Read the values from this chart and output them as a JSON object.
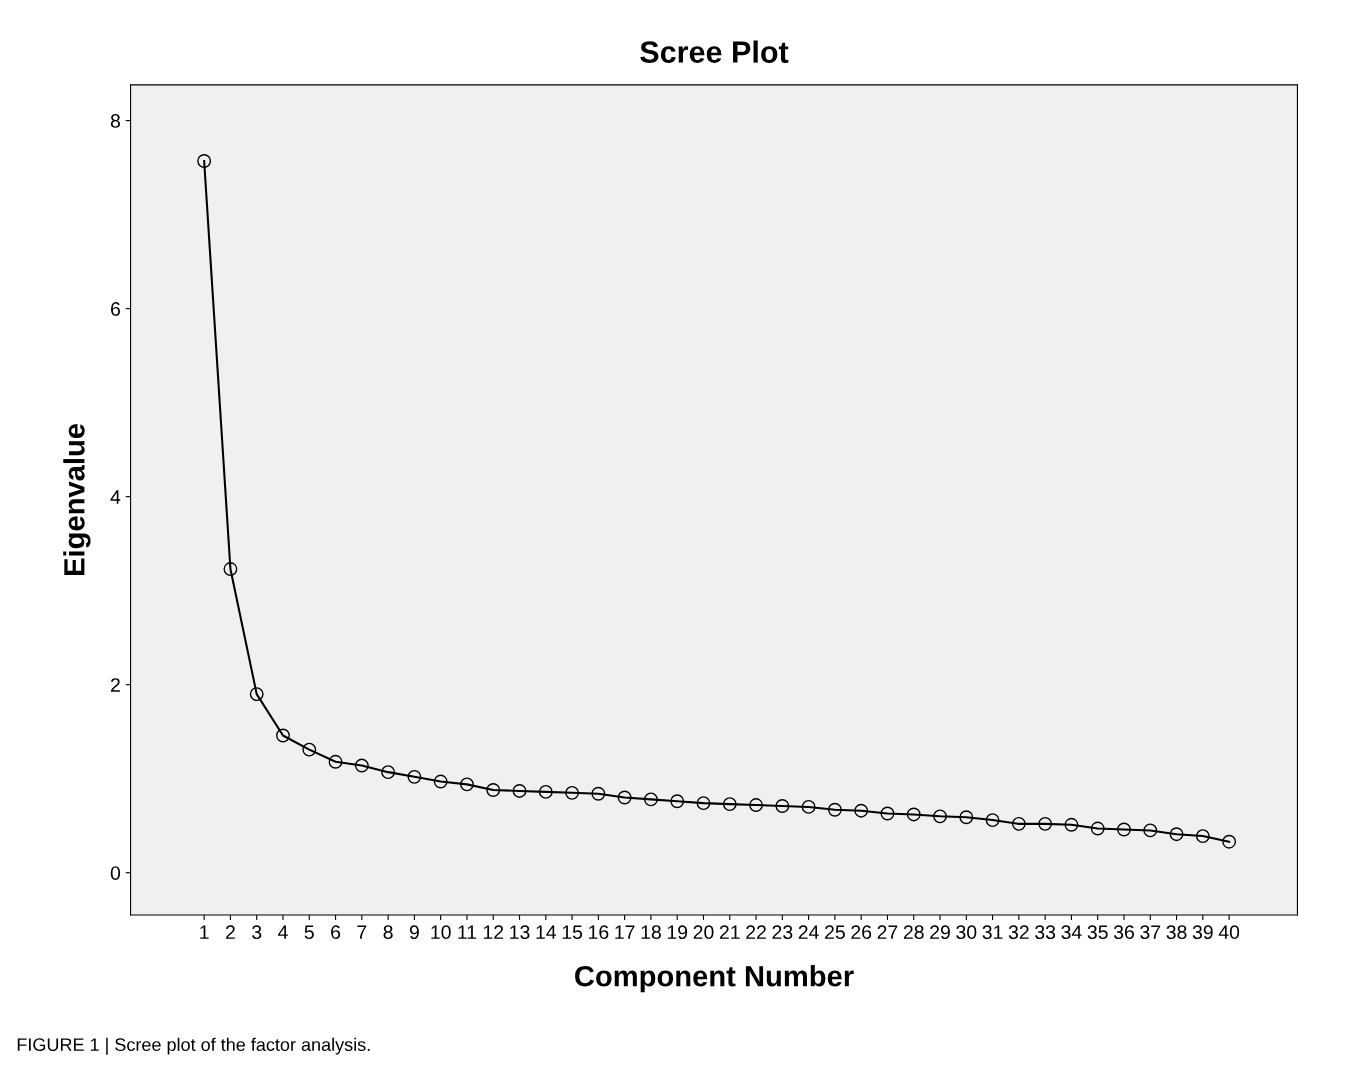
{
  "chart_data": {
    "type": "line",
    "title": "Scree Plot",
    "xlabel": "Component Number",
    "ylabel": "Eigenvalue",
    "categories": [
      "1",
      "2",
      "3",
      "4",
      "5",
      "6",
      "7",
      "8",
      "9",
      "10",
      "11",
      "12",
      "13",
      "14",
      "15",
      "16",
      "17",
      "18",
      "19",
      "20",
      "21",
      "22",
      "23",
      "24",
      "25",
      "26",
      "27",
      "28",
      "29",
      "30",
      "31",
      "32",
      "33",
      "34",
      "35",
      "36",
      "37",
      "38",
      "39",
      "40"
    ],
    "values": [
      7.57,
      3.23,
      1.9,
      1.46,
      1.31,
      1.18,
      1.14,
      1.07,
      1.02,
      0.97,
      0.94,
      0.88,
      0.87,
      0.86,
      0.85,
      0.84,
      0.8,
      0.78,
      0.76,
      0.74,
      0.73,
      0.72,
      0.71,
      0.7,
      0.67,
      0.66,
      0.63,
      0.62,
      0.6,
      0.59,
      0.56,
      0.52,
      0.52,
      0.51,
      0.47,
      0.46,
      0.45,
      0.41,
      0.39,
      0.33
    ],
    "color": "#000000",
    "marker": "circle",
    "line_style": "solid",
    "grid": false,
    "legend": false,
    "ylim": [
      -0.45,
      8.38
    ],
    "yticks": [
      0,
      2,
      4,
      6,
      8
    ],
    "annotations": [
      "FIGURE 1 | Scree plot of the factor analysis."
    ]
  }
}
